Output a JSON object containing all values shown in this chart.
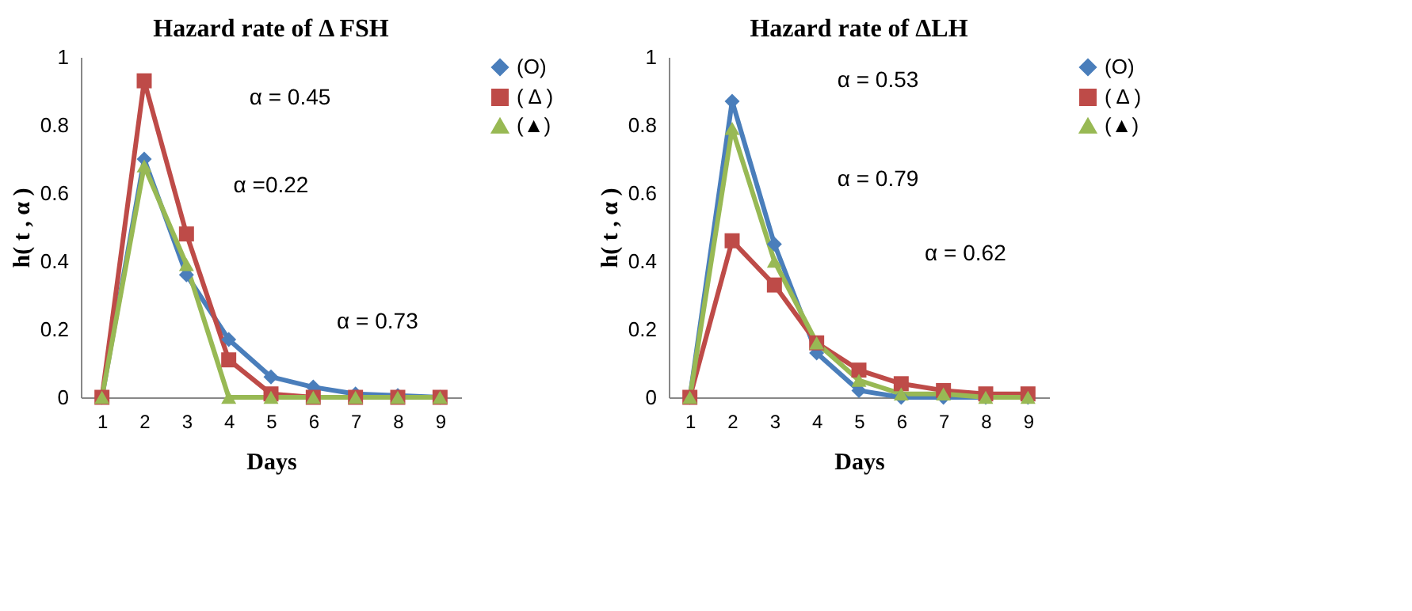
{
  "chart_data": [
    {
      "type": "line",
      "title": "Hazard rate of Δ FSH",
      "xlabel": "Days",
      "ylabel": "h( t , α )",
      "categories": [
        "1",
        "2",
        "3",
        "4",
        "5",
        "6",
        "7",
        "8",
        "9"
      ],
      "ylim": [
        0,
        1
      ],
      "yticks": [
        0,
        0.2,
        0.4,
        0.6,
        0.8,
        1
      ],
      "grid": false,
      "legend": "right",
      "line_style": "solid",
      "series": [
        {
          "name": "(O)",
          "color": "#4a7ebb",
          "marker": "diamond",
          "values": [
            0,
            0.7,
            0.36,
            0.17,
            0.06,
            0.03,
            0.01,
            0.005,
            0
          ]
        },
        {
          "name": "( Δ )",
          "color": "#be4b48",
          "marker": "square",
          "values": [
            0,
            0.93,
            0.48,
            0.11,
            0.01,
            0,
            0,
            0,
            0
          ]
        },
        {
          "name": "(▲)",
          "color": "#98b954",
          "marker": "triangle",
          "values": [
            0,
            0.68,
            0.39,
            0,
            0,
            0,
            0,
            0,
            0
          ]
        }
      ],
      "annotations": [
        "α = 0.45",
        "α =0.22",
        "α = 0.73"
      ]
    },
    {
      "type": "line",
      "title": "Hazard rate of  ΔLH",
      "xlabel": "Days",
      "ylabel": "h( t , α )",
      "categories": [
        "1",
        "2",
        "3",
        "4",
        "5",
        "6",
        "7",
        "8",
        "9"
      ],
      "ylim": [
        0,
        1
      ],
      "yticks": [
        0,
        0.2,
        0.4,
        0.6,
        0.8,
        1
      ],
      "grid": false,
      "legend": "right",
      "line_style": "solid",
      "series": [
        {
          "name": "(O)",
          "color": "#4a7ebb",
          "marker": "diamond",
          "values": [
            0,
            0.87,
            0.45,
            0.13,
            0.02,
            0,
            0,
            0,
            0
          ]
        },
        {
          "name": "( Δ )",
          "color": "#be4b48",
          "marker": "square",
          "values": [
            0,
            0.46,
            0.33,
            0.16,
            0.08,
            0.04,
            0.02,
            0.01,
            0.01
          ]
        },
        {
          "name": "(▲)",
          "color": "#98b954",
          "marker": "triangle",
          "values": [
            0,
            0.79,
            0.4,
            0.16,
            0.05,
            0.01,
            0.01,
            0,
            0
          ]
        }
      ],
      "annotations": [
        "α = 0.53",
        "α = 0.79",
        "α = 0.62"
      ]
    }
  ]
}
